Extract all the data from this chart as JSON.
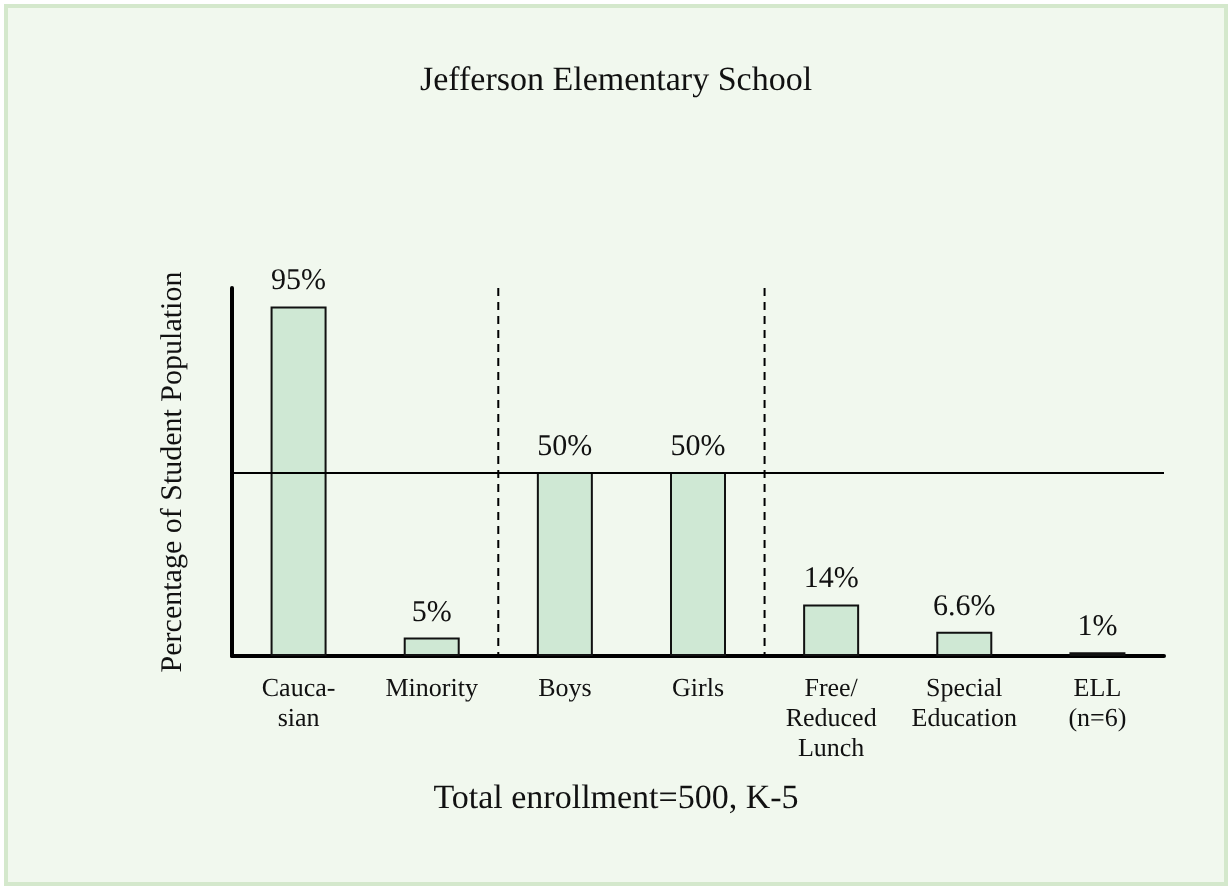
{
  "chart_data": {
    "type": "bar",
    "title": "Jefferson Elementary School",
    "ylabel": "Percentage of Student Population",
    "categories": [
      "Cauca-\nsian",
      "Minority",
      "Boys",
      "Girls",
      "Free/\nReduced\nLunch",
      "Special\nEducation",
      "ELL\n(n=6)"
    ],
    "values": [
      95,
      5,
      50,
      50,
      14,
      6.6,
      1
    ],
    "value_labels": [
      "95%",
      "5%",
      "50%",
      "50%",
      "14%",
      "6.6%",
      "1%"
    ],
    "color": "#cfe8d4",
    "tick_labels": "x",
    "ref_lines": [
      {
        "axis": "y",
        "value": 50,
        "line_style": "solid",
        "color": "#000000"
      }
    ],
    "annotations": [
      "Total enrollment=500, K-5"
    ],
    "grid": false
  }
}
